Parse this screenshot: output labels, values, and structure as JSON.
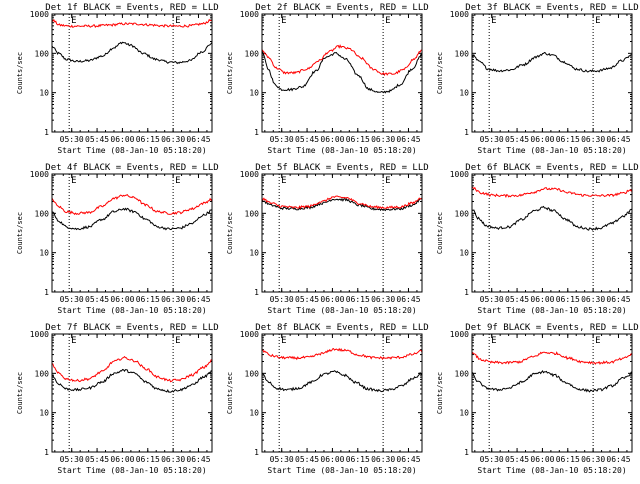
{
  "figure": {
    "background": "#ffffff",
    "axis_color": "#000000",
    "series_colors": {
      "events": "#000000",
      "lld": "#ff0000"
    }
  },
  "chart_data": [
    {
      "type": "line",
      "title": "Det 1f BLACK = Events, RED = LLD",
      "xlabel": "Start Time (08-Jan-10 05:18:20)",
      "ylabel": "Counts/sec",
      "y_scale": "log",
      "ylim": [
        1,
        1000
      ],
      "yticks": [
        1,
        10,
        100,
        1000
      ],
      "ytick_labels": [
        "1",
        "10",
        "100",
        "1000"
      ],
      "xlim": [
        "05:18:20",
        "06:53:00"
      ],
      "xticks": [
        "05:30",
        "05:45",
        "06:00",
        "06:15",
        "06:30",
        "06:45"
      ],
      "markers": [
        {
          "x": "05:28:30",
          "label": "E"
        },
        {
          "x": "06:30:00",
          "label": "E"
        }
      ],
      "series": [
        {
          "key": "events",
          "color": "#000000",
          "x": [
            "05:18:20",
            "05:22",
            "05:27",
            "05:33",
            "05:40",
            "05:48",
            "05:55",
            "06:00",
            "06:05",
            "06:12",
            "06:20",
            "06:27",
            "06:33",
            "06:40",
            "06:47",
            "06:53"
          ],
          "y": [
            150,
            100,
            70,
            62,
            65,
            85,
            140,
            190,
            160,
            100,
            70,
            60,
            58,
            65,
            110,
            180
          ]
        },
        {
          "key": "lld",
          "color": "#ff0000",
          "x": [
            "05:18:20",
            "05:23",
            "05:29",
            "05:36",
            "05:44",
            "05:52",
            "06:00",
            "06:08",
            "06:16",
            "06:24",
            "06:32",
            "06:40",
            "06:47",
            "06:53"
          ],
          "y": [
            700,
            520,
            490,
            490,
            495,
            520,
            560,
            560,
            530,
            500,
            490,
            500,
            560,
            700
          ]
        }
      ]
    },
    {
      "type": "line",
      "title": "Det 2f BLACK = Events, RED = LLD",
      "xlabel": "Start Time (08-Jan-10 05:18:20)",
      "ylabel": "Counts/sec",
      "y_scale": "log",
      "ylim": [
        1,
        1000
      ],
      "yticks": [
        1,
        10,
        100,
        1000
      ],
      "ytick_labels": [
        "1",
        "10",
        "100",
        "1000"
      ],
      "xlim": [
        "05:18:20",
        "06:53:00"
      ],
      "xticks": [
        "05:30",
        "05:45",
        "06:00",
        "06:15",
        "06:30",
        "06:45"
      ],
      "markers": [
        {
          "x": "05:28:30",
          "label": "E"
        },
        {
          "x": "06:30:00",
          "label": "E"
        }
      ],
      "series": [
        {
          "key": "events",
          "color": "#000000",
          "x": [
            "05:18:20",
            "05:22",
            "05:26",
            "05:30",
            "05:35",
            "05:42",
            "05:50",
            "05:56",
            "06:02",
            "06:08",
            "06:15",
            "06:22",
            "06:28",
            "06:34",
            "06:40",
            "06:47",
            "06:53"
          ],
          "y": [
            110,
            40,
            16,
            12,
            12,
            14,
            35,
            80,
            100,
            70,
            28,
            12,
            10,
            11,
            16,
            40,
            90
          ]
        },
        {
          "key": "lld",
          "color": "#ff0000",
          "x": [
            "05:18:20",
            "05:22",
            "05:27",
            "05:32",
            "05:38",
            "05:45",
            "05:52",
            "05:58",
            "06:04",
            "06:10",
            "06:17",
            "06:24",
            "06:30",
            "06:36",
            "06:42",
            "06:48",
            "06:53"
          ],
          "y": [
            120,
            80,
            42,
            32,
            32,
            40,
            65,
            110,
            150,
            130,
            75,
            40,
            30,
            30,
            38,
            70,
            120
          ]
        }
      ]
    },
    {
      "type": "line",
      "title": "Det 3f BLACK = Events, RED = LLD",
      "xlabel": "Start Time (08-Jan-10 05:18:20)",
      "ylabel": "Counts/sec",
      "y_scale": "log",
      "ylim": [
        1,
        1000
      ],
      "yticks": [
        1,
        10,
        100,
        1000
      ],
      "ytick_labels": [
        "1",
        "10",
        "100",
        "1000"
      ],
      "xlim": [
        "05:18:20",
        "06:53:00"
      ],
      "xticks": [
        "05:30",
        "05:45",
        "06:00",
        "06:15",
        "06:30",
        "06:45"
      ],
      "markers": [
        {
          "x": "05:28:30",
          "label": "E"
        },
        {
          "x": "06:30:00",
          "label": "E"
        }
      ],
      "series": [
        {
          "key": "events",
          "color": "#000000",
          "x": [
            "05:18:20",
            "05:23",
            "05:28",
            "05:34",
            "05:41",
            "05:49",
            "05:56",
            "06:01",
            "06:06",
            "06:13",
            "06:20",
            "06:27",
            "06:33",
            "06:40",
            "06:47",
            "06:53"
          ],
          "y": [
            90,
            60,
            40,
            36,
            38,
            52,
            80,
            100,
            90,
            60,
            40,
            35,
            36,
            42,
            65,
            90
          ]
        }
      ]
    },
    {
      "type": "line",
      "title": "Det 4f BLACK = Events, RED = LLD",
      "xlabel": "Start Time (08-Jan-10 05:18:20)",
      "ylabel": "Counts/sec",
      "y_scale": "log",
      "ylim": [
        1,
        1000
      ],
      "yticks": [
        1,
        10,
        100,
        1000
      ],
      "ytick_labels": [
        "1",
        "10",
        "100",
        "1000"
      ],
      "xlim": [
        "05:18:20",
        "06:53:00"
      ],
      "xticks": [
        "05:30",
        "05:45",
        "06:00",
        "06:15",
        "06:30",
        "06:45"
      ],
      "markers": [
        {
          "x": "05:28:30",
          "label": "E"
        },
        {
          "x": "06:30:00",
          "label": "E"
        }
      ],
      "series": [
        {
          "key": "events",
          "color": "#000000",
          "x": [
            "05:18:20",
            "05:22",
            "05:27",
            "05:33",
            "05:40",
            "05:48",
            "05:55",
            "06:01",
            "06:07",
            "06:14",
            "06:21",
            "06:28",
            "06:34",
            "06:41",
            "06:48",
            "06:53"
          ],
          "y": [
            110,
            65,
            45,
            40,
            45,
            70,
            110,
            130,
            110,
            70,
            45,
            40,
            42,
            55,
            90,
            120
          ]
        },
        {
          "key": "lld",
          "color": "#ff0000",
          "x": [
            "05:18:20",
            "05:22",
            "05:27",
            "05:33",
            "05:40",
            "05:48",
            "05:55",
            "06:01",
            "06:07",
            "06:14",
            "06:21",
            "06:28",
            "06:34",
            "06:41",
            "06:48",
            "06:53"
          ],
          "y": [
            230,
            150,
            110,
            100,
            105,
            150,
            240,
            290,
            250,
            160,
            110,
            100,
            105,
            130,
            180,
            230
          ]
        }
      ]
    },
    {
      "type": "line",
      "title": "Det 5f BLACK = Events, RED = LLD",
      "xlabel": "Start Time (08-Jan-10 05:18:20)",
      "ylabel": "Counts/sec",
      "y_scale": "log",
      "ylim": [
        1,
        1000
      ],
      "yticks": [
        1,
        10,
        100,
        1000
      ],
      "ytick_labels": [
        "1",
        "10",
        "100",
        "1000"
      ],
      "xlim": [
        "05:18:20",
        "06:53:00"
      ],
      "xticks": [
        "05:30",
        "05:45",
        "06:00",
        "06:15",
        "06:30",
        "06:45"
      ],
      "markers": [
        {
          "x": "05:28:30",
          "label": "E"
        },
        {
          "x": "06:30:00",
          "label": "E"
        }
      ],
      "series": [
        {
          "key": "events",
          "color": "#000000",
          "x": [
            "05:18:20",
            "05:24",
            "05:30",
            "05:38",
            "05:46",
            "05:54",
            "06:01",
            "06:08",
            "06:16",
            "06:24",
            "06:32",
            "06:40",
            "06:47",
            "06:53"
          ],
          "y": [
            210,
            160,
            135,
            130,
            140,
            180,
            230,
            220,
            160,
            130,
            125,
            130,
            160,
            230
          ]
        },
        {
          "key": "lld",
          "color": "#ff0000",
          "x": [
            "05:18:20",
            "05:24",
            "05:30",
            "05:38",
            "05:46",
            "05:54",
            "06:01",
            "06:08",
            "06:16",
            "06:24",
            "06:32",
            "06:40",
            "06:47",
            "06:53"
          ],
          "y": [
            240,
            180,
            150,
            140,
            150,
            200,
            260,
            250,
            180,
            145,
            140,
            145,
            180,
            250
          ]
        }
      ]
    },
    {
      "type": "line",
      "title": "Det 6f BLACK = Events, RED = LLD",
      "xlabel": "Start Time (08-Jan-10 05:18:20)",
      "ylabel": "Counts/sec",
      "y_scale": "log",
      "ylim": [
        1,
        1000
      ],
      "yticks": [
        1,
        10,
        100,
        1000
      ],
      "ytick_labels": [
        "1",
        "10",
        "100",
        "1000"
      ],
      "xlim": [
        "05:18:20",
        "06:53:00"
      ],
      "xticks": [
        "05:30",
        "05:45",
        "06:00",
        "06:15",
        "06:30",
        "06:45"
      ],
      "markers": [
        {
          "x": "05:28:30",
          "label": "E"
        },
        {
          "x": "06:30:00",
          "label": "E"
        }
      ],
      "series": [
        {
          "key": "events",
          "color": "#000000",
          "x": [
            "05:18:20",
            "05:22",
            "05:27",
            "05:33",
            "05:40",
            "05:48",
            "05:55",
            "06:01",
            "06:07",
            "06:14",
            "06:21",
            "06:28",
            "06:34",
            "06:41",
            "06:48",
            "06:53"
          ],
          "y": [
            130,
            75,
            48,
            42,
            45,
            70,
            115,
            140,
            115,
            70,
            45,
            40,
            42,
            55,
            85,
            125
          ]
        },
        {
          "key": "lld",
          "color": "#ff0000",
          "x": [
            "05:18:20",
            "05:24",
            "05:30",
            "05:38",
            "05:46",
            "05:54",
            "06:01",
            "06:08",
            "06:16",
            "06:24",
            "06:32",
            "06:40",
            "06:47",
            "06:53"
          ],
          "y": [
            450,
            330,
            290,
            280,
            285,
            340,
            420,
            410,
            330,
            290,
            280,
            285,
            320,
            400
          ]
        }
      ]
    },
    {
      "type": "line",
      "title": "Det 7f BLACK = Events, RED = LLD",
      "xlabel": "Start Time (08-Jan-10 05:18:20)",
      "ylabel": "Counts/sec",
      "y_scale": "log",
      "ylim": [
        1,
        1000
      ],
      "yticks": [
        1,
        10,
        100,
        1000
      ],
      "ytick_labels": [
        "1",
        "10",
        "100",
        "1000"
      ],
      "xlim": [
        "05:18:20",
        "06:53:00"
      ],
      "xticks": [
        "05:30",
        "05:45",
        "06:00",
        "06:15",
        "06:30",
        "06:45"
      ],
      "markers": [
        {
          "x": "05:28:30",
          "label": "E"
        },
        {
          "x": "06:30:00",
          "label": "E"
        }
      ],
      "series": [
        {
          "key": "events",
          "color": "#000000",
          "x": [
            "05:18:20",
            "05:22",
            "05:27",
            "05:33",
            "05:40",
            "05:48",
            "05:55",
            "06:01",
            "06:07",
            "06:14",
            "06:21",
            "06:28",
            "06:34",
            "06:41",
            "06:48",
            "06:53"
          ],
          "y": [
            90,
            55,
            40,
            38,
            42,
            60,
            100,
            120,
            100,
            60,
            40,
            35,
            38,
            50,
            80,
            110
          ]
        },
        {
          "key": "lld",
          "color": "#ff0000",
          "x": [
            "05:18:20",
            "05:22",
            "05:27",
            "05:33",
            "05:40",
            "05:48",
            "05:55",
            "06:01",
            "06:07",
            "06:14",
            "06:21",
            "06:28",
            "06:34",
            "06:41",
            "06:48",
            "06:53"
          ],
          "y": [
            170,
            100,
            72,
            65,
            72,
            110,
            200,
            250,
            210,
            130,
            80,
            65,
            68,
            90,
            140,
            210
          ]
        }
      ]
    },
    {
      "type": "line",
      "title": "Det 8f BLACK = Events, RED = LLD",
      "xlabel": "Start Time (08-Jan-10 05:18:20)",
      "ylabel": "Counts/sec",
      "y_scale": "log",
      "ylim": [
        1,
        1000
      ],
      "yticks": [
        1,
        10,
        100,
        1000
      ],
      "ytick_labels": [
        "1",
        "10",
        "100",
        "1000"
      ],
      "xlim": [
        "05:18:20",
        "06:53:00"
      ],
      "xticks": [
        "05:30",
        "05:45",
        "06:00",
        "06:15",
        "06:30",
        "06:45"
      ],
      "markers": [
        {
          "x": "05:28:30",
          "label": "E"
        },
        {
          "x": "06:30:00",
          "label": "E"
        }
      ],
      "series": [
        {
          "key": "events",
          "color": "#000000",
          "x": [
            "05:18:20",
            "05:22",
            "05:27",
            "05:33",
            "05:40",
            "05:48",
            "05:55",
            "06:01",
            "06:07",
            "06:14",
            "06:21",
            "06:28",
            "06:34",
            "06:41",
            "06:48",
            "06:53"
          ],
          "y": [
            100,
            60,
            42,
            38,
            42,
            60,
            95,
            110,
            90,
            58,
            40,
            36,
            38,
            48,
            75,
            100
          ]
        },
        {
          "key": "lld",
          "color": "#ff0000",
          "x": [
            "05:18:20",
            "05:24",
            "05:30",
            "05:38",
            "05:46",
            "05:54",
            "06:01",
            "06:08",
            "06:16",
            "06:24",
            "06:32",
            "06:40",
            "06:47",
            "06:53"
          ],
          "y": [
            380,
            280,
            250,
            245,
            255,
            320,
            410,
            380,
            290,
            250,
            245,
            255,
            300,
            370
          ]
        }
      ]
    },
    {
      "type": "line",
      "title": "Det 9f BLACK = Events, RED = LLD",
      "xlabel": "Start Time (08-Jan-10 05:18:20)",
      "ylabel": "Counts/sec",
      "y_scale": "log",
      "ylim": [
        1,
        1000
      ],
      "yticks": [
        1,
        10,
        100,
        1000
      ],
      "ytick_labels": [
        "1",
        "10",
        "100",
        "1000"
      ],
      "xlim": [
        "05:18:20",
        "06:53:00"
      ],
      "xticks": [
        "05:30",
        "05:45",
        "06:00",
        "06:15",
        "06:30",
        "06:45"
      ],
      "markers": [
        {
          "x": "05:28:30",
          "label": "E"
        },
        {
          "x": "06:30:00",
          "label": "E"
        }
      ],
      "series": [
        {
          "key": "events",
          "color": "#000000",
          "x": [
            "05:18:20",
            "05:22",
            "05:27",
            "05:33",
            "05:40",
            "05:48",
            "05:55",
            "06:01",
            "06:07",
            "06:14",
            "06:21",
            "06:28",
            "06:34",
            "06:41",
            "06:48",
            "06:53"
          ],
          "y": [
            100,
            60,
            42,
            38,
            42,
            60,
            95,
            110,
            90,
            58,
            40,
            36,
            38,
            48,
            75,
            100
          ]
        },
        {
          "key": "lld",
          "color": "#ff0000",
          "x": [
            "05:18:20",
            "05:24",
            "05:30",
            "05:38",
            "05:46",
            "05:54",
            "06:01",
            "06:08",
            "06:16",
            "06:24",
            "06:32",
            "06:40",
            "06:47",
            "06:53"
          ],
          "y": [
            320,
            220,
            190,
            185,
            195,
            260,
            340,
            320,
            240,
            195,
            185,
            190,
            230,
            300
          ]
        }
      ]
    }
  ]
}
